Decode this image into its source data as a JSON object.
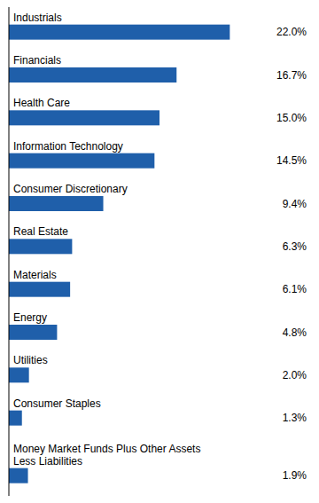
{
  "chart_data": {
    "type": "bar",
    "orientation": "horizontal",
    "categories": [
      "Industrials",
      "Financials",
      "Health Care",
      "Information Technology",
      "Consumer Discretionary",
      "Real Estate",
      "Materials",
      "Energy",
      "Utilities",
      "Consumer Staples",
      "Money Market Funds Plus Other Assets\nLess Liabilities"
    ],
    "values": [
      22.0,
      16.7,
      15.0,
      14.5,
      9.4,
      6.3,
      6.1,
      4.8,
      2.0,
      1.3,
      1.9
    ],
    "value_labels": [
      "22.0%",
      "16.7%",
      "15.0%",
      "14.5%",
      "9.4%",
      "6.3%",
      "6.1%",
      "4.8%",
      "2.0%",
      "1.3%",
      "1.9%"
    ],
    "color": "#1f5faa",
    "xlim": [
      0,
      30
    ],
    "data_labels": true,
    "tick_labels": false,
    "grid": false
  }
}
